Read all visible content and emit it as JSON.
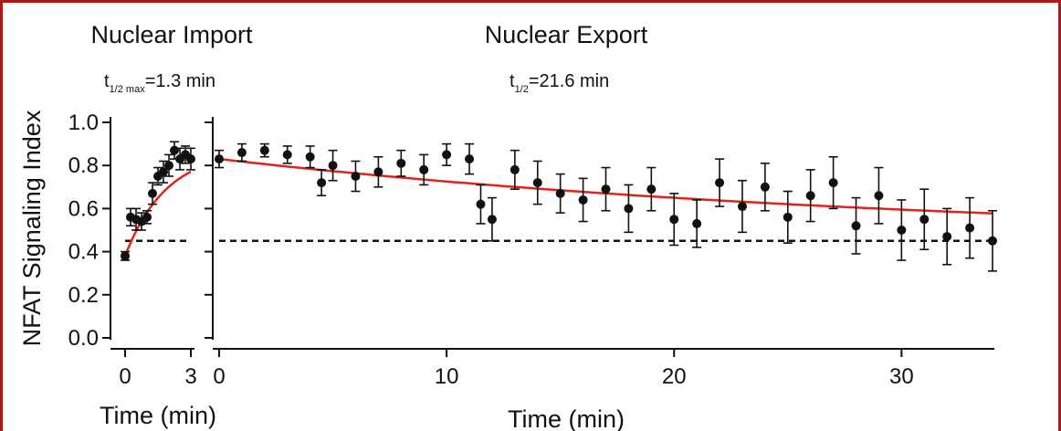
{
  "panels": {
    "import": {
      "title": "Nuclear Import",
      "half_life_t": "t",
      "half_life_sub": "1/2 max",
      "half_life_value": "=1.3 min"
    },
    "export": {
      "title": "Nuclear Export",
      "half_life_t": "t",
      "half_life_sub": "1/2",
      "half_life_value": "=21.6 min"
    }
  },
  "colors": {
    "points": "#111111",
    "fit": "#e0241b",
    "frame": "#b01818",
    "baseline": "#111111"
  },
  "chart_data": [
    {
      "type": "scatter",
      "title": "Nuclear Import",
      "ylabel": "NFAT Signaling Index",
      "xlabel": "Time (min)",
      "xlim": [
        0,
        3
      ],
      "ylim": [
        0.0,
        1.0
      ],
      "x_ticks": [
        "0",
        "3"
      ],
      "y_ticks": [
        "0.0",
        "0.2",
        "0.4",
        "0.6",
        "0.8",
        "1.0"
      ],
      "baseline": 0.45,
      "fit": {
        "style": "red line",
        "t_half_max_min": 1.3
      },
      "x": [
        0.0,
        0.25,
        0.5,
        0.75,
        1.0,
        1.25,
        1.5,
        1.75,
        2.0,
        2.25,
        2.5,
        2.75,
        3.0
      ],
      "y": [
        0.38,
        0.56,
        0.55,
        0.54,
        0.56,
        0.67,
        0.75,
        0.77,
        0.8,
        0.87,
        0.83,
        0.85,
        0.83
      ],
      "error": [
        0.02,
        0.04,
        0.05,
        0.04,
        0.03,
        0.05,
        0.04,
        0.05,
        0.05,
        0.04,
        0.05,
        0.04,
        0.05
      ]
    },
    {
      "type": "scatter",
      "title": "Nuclear Export",
      "xlabel": "Time (min)",
      "xlim": [
        0,
        34
      ],
      "ylim": [
        0.0,
        1.0
      ],
      "x_ticks": [
        "0",
        "10",
        "20",
        "30"
      ],
      "baseline": 0.45,
      "fit": {
        "style": "red line",
        "t_half_min": 21.6
      },
      "x": [
        0.0,
        1.0,
        2.0,
        3.0,
        4.0,
        4.5,
        5.0,
        6.0,
        7.0,
        8.0,
        9.0,
        10.0,
        11.0,
        11.5,
        12.0,
        13.0,
        14.0,
        15.0,
        16.0,
        17.0,
        18.0,
        19.0,
        20.0,
        21.0,
        22.0,
        23.0,
        24.0,
        25.0,
        26.0,
        27.0,
        28.0,
        29.0,
        30.0,
        31.0,
        32.0,
        33.0,
        34.0
      ],
      "y": [
        0.83,
        0.86,
        0.87,
        0.85,
        0.84,
        0.72,
        0.8,
        0.75,
        0.77,
        0.81,
        0.78,
        0.85,
        0.83,
        0.62,
        0.55,
        0.78,
        0.72,
        0.67,
        0.64,
        0.69,
        0.6,
        0.69,
        0.55,
        0.53,
        0.72,
        0.61,
        0.7,
        0.56,
        0.66,
        0.72,
        0.52,
        0.66,
        0.5,
        0.55,
        0.47,
        0.51,
        0.45
      ],
      "error": [
        0.04,
        0.04,
        0.03,
        0.04,
        0.05,
        0.06,
        0.07,
        0.07,
        0.07,
        0.06,
        0.07,
        0.05,
        0.07,
        0.09,
        0.1,
        0.09,
        0.1,
        0.09,
        0.1,
        0.1,
        0.11,
        0.1,
        0.12,
        0.11,
        0.11,
        0.12,
        0.11,
        0.12,
        0.12,
        0.12,
        0.13,
        0.13,
        0.14,
        0.14,
        0.13,
        0.14,
        0.14
      ]
    }
  ]
}
